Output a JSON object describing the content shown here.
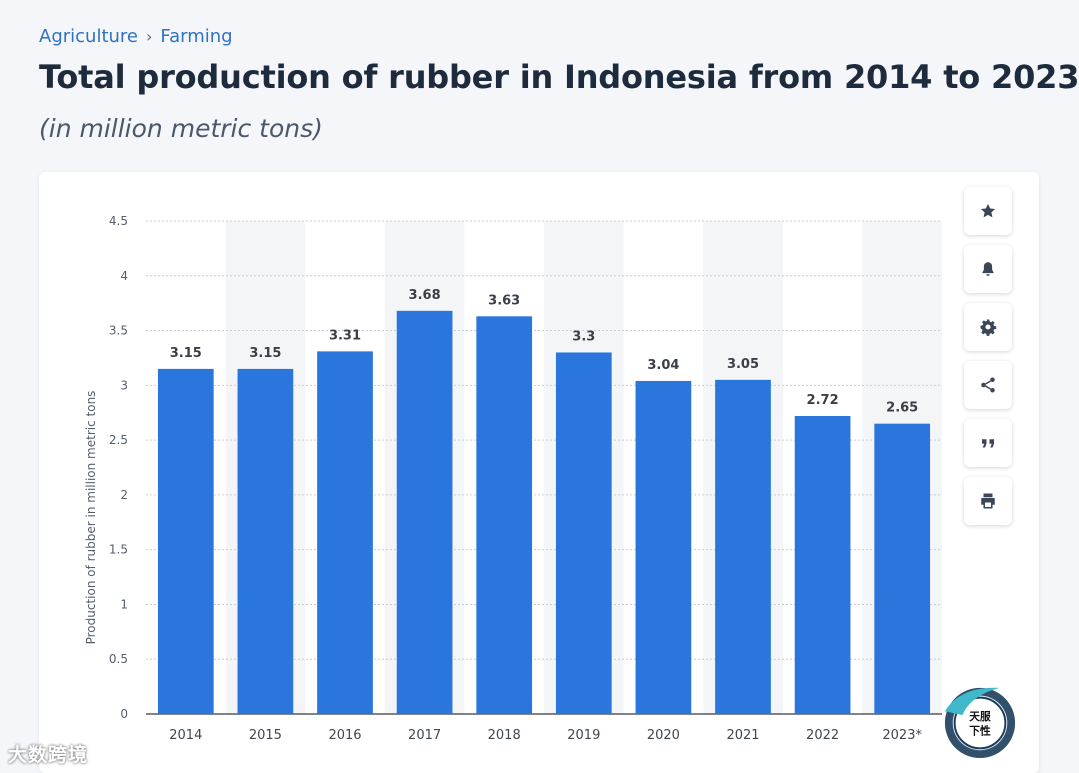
{
  "breadcrumb": {
    "items": [
      "Agriculture",
      "Farming"
    ],
    "separator": "›"
  },
  "title": "Total production of rubber in Indonesia from 2014 to 2023",
  "subtitle": "(in million metric tons)",
  "colors": {
    "bar": "#2a76dd",
    "title": "#1e2b3c",
    "link": "#2f72c4",
    "stripe": "#f4f5f7"
  },
  "tools": [
    {
      "name": "star-icon",
      "label": "Favorite"
    },
    {
      "name": "bell-icon",
      "label": "Notification"
    },
    {
      "name": "gear-icon",
      "label": "Settings"
    },
    {
      "name": "share-icon",
      "label": "Share"
    },
    {
      "name": "quote-icon",
      "label": "Cite"
    },
    {
      "name": "print-icon",
      "label": "Print"
    }
  ],
  "chart_data": {
    "type": "bar",
    "categories": [
      "2014",
      "2015",
      "2016",
      "2017",
      "2018",
      "2019",
      "2020",
      "2021",
      "2022",
      "2023*"
    ],
    "values": [
      3.15,
      3.15,
      3.31,
      3.68,
      3.63,
      3.3,
      3.04,
      3.05,
      2.72,
      2.65
    ],
    "data_labels": [
      "3.15",
      "3.15",
      "3.31",
      "3.68",
      "3.63",
      "3.3",
      "3.04",
      "3.05",
      "2.72",
      "2.65"
    ],
    "ylabel": "Production of rubber in million metric tons",
    "xlabel": "",
    "ylim": [
      0,
      4.5
    ],
    "yticks": [
      "0",
      "0.5",
      "1",
      "1.5",
      "2",
      "2.5",
      "3",
      "3.5",
      "4",
      "4.5"
    ],
    "grid": true,
    "legend": "none"
  },
  "watermark": {
    "text": "大数跨境",
    "logo_text": [
      "天服",
      "下性"
    ]
  }
}
